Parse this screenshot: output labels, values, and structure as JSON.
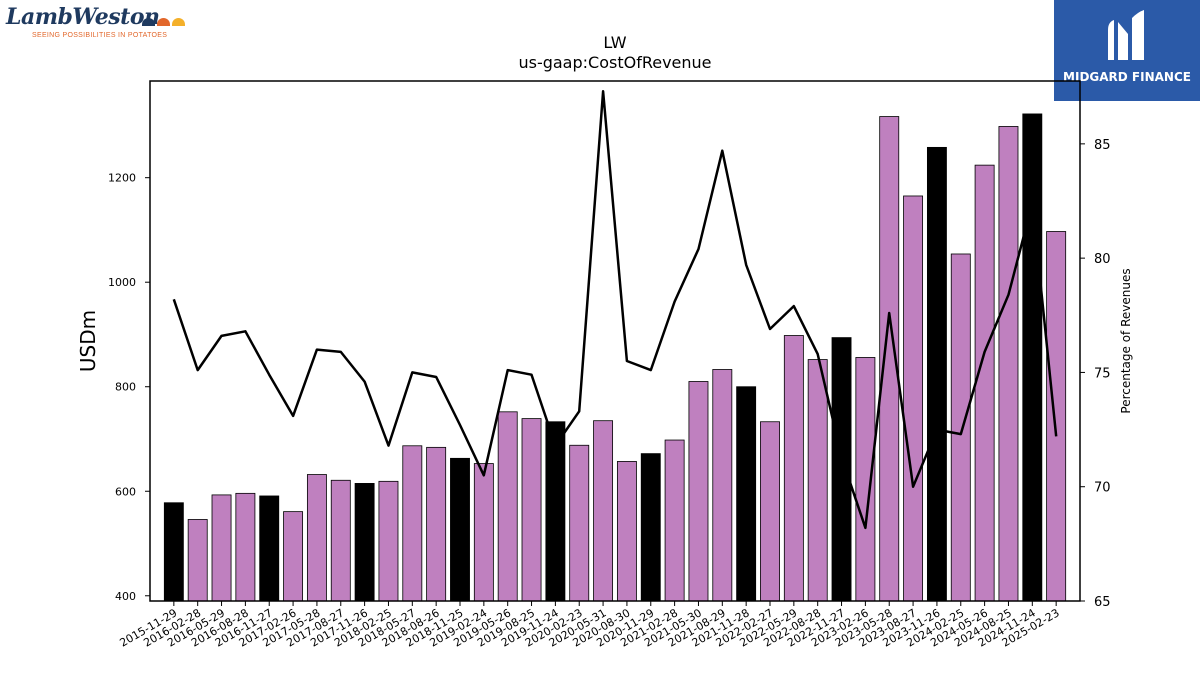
{
  "logos": {
    "left": {
      "name": "LambWeston",
      "tagline": "SEEING POSSIBILITIES IN POTATOES",
      "dot_colors": [
        "#1f3a5f",
        "#e2672b",
        "#f4b02a"
      ]
    },
    "right": {
      "name": "MIDGARD FINANCE",
      "bg_color": "#2b5aa8"
    }
  },
  "chart_data": {
    "type": "bar",
    "title": "LW",
    "subtitle": "us-gaap:CostOfRevenue",
    "ylabel": "USDm",
    "y2label": "Percentage of Revenues",
    "ylim": [
      390,
      1385
    ],
    "y2lim": [
      65,
      87.75
    ],
    "yticks": [
      400,
      600,
      800,
      1000,
      1200
    ],
    "y2ticks": [
      65,
      70,
      75,
      80,
      85
    ],
    "categories": [
      "2015-11-29",
      "2016-02-28",
      "2016-05-29",
      "2016-08-28",
      "2016-11-27",
      "2017-02-26",
      "2017-05-28",
      "2017-08-27",
      "2017-11-26",
      "2018-02-25",
      "2018-05-27",
      "2018-08-26",
      "2018-11-25",
      "2019-02-24",
      "2019-05-26",
      "2019-08-25",
      "2019-11-24",
      "2020-02-23",
      "2020-05-31",
      "2020-08-30",
      "2020-11-29",
      "2021-02-28",
      "2021-05-30",
      "2021-08-29",
      "2021-11-28",
      "2022-02-27",
      "2022-05-29",
      "2022-08-28",
      "2022-11-27",
      "2023-02-26",
      "2023-05-28",
      "2023-08-27",
      "2023-11-26",
      "2024-02-25",
      "2024-05-26",
      "2024-08-25",
      "2024-11-24",
      "2025-02-23"
    ],
    "series": [
      {
        "type": "bar",
        "axis": "left",
        "values": [
          578,
          546,
          593,
          596,
          591,
          561,
          632,
          621,
          615,
          619,
          687,
          684,
          663,
          653,
          752,
          739,
          733,
          688,
          735,
          657,
          672,
          698,
          810,
          833,
          800,
          733,
          898,
          852,
          894,
          856,
          1317,
          1165,
          1258,
          1054,
          1224,
          1298,
          1322,
          1097
        ],
        "highlight": [
          true,
          false,
          false,
          false,
          true,
          false,
          false,
          false,
          true,
          false,
          false,
          false,
          true,
          false,
          false,
          false,
          true,
          false,
          false,
          false,
          true,
          false,
          false,
          false,
          true,
          false,
          false,
          false,
          true,
          false,
          false,
          false,
          true,
          false,
          false,
          false,
          true,
          false
        ]
      },
      {
        "type": "line",
        "axis": "right",
        "values": [
          78.2,
          75.1,
          76.6,
          76.8,
          74.9,
          73.1,
          76.0,
          75.9,
          74.6,
          71.8,
          75.0,
          74.8,
          72.7,
          70.5,
          75.1,
          74.9,
          71.8,
          73.3,
          87.3,
          75.5,
          75.1,
          78.1,
          80.4,
          84.7,
          79.7,
          76.9,
          77.9,
          75.8,
          71.3,
          68.2,
          77.6,
          70.0,
          72.5,
          72.3,
          75.9,
          78.4,
          82.4,
          72.2
        ]
      }
    ],
    "colors": {
      "bar": "#bf80bf",
      "bar_highlight": "#000000",
      "line": "#000000"
    },
    "grid": false,
    "legend": "none"
  }
}
